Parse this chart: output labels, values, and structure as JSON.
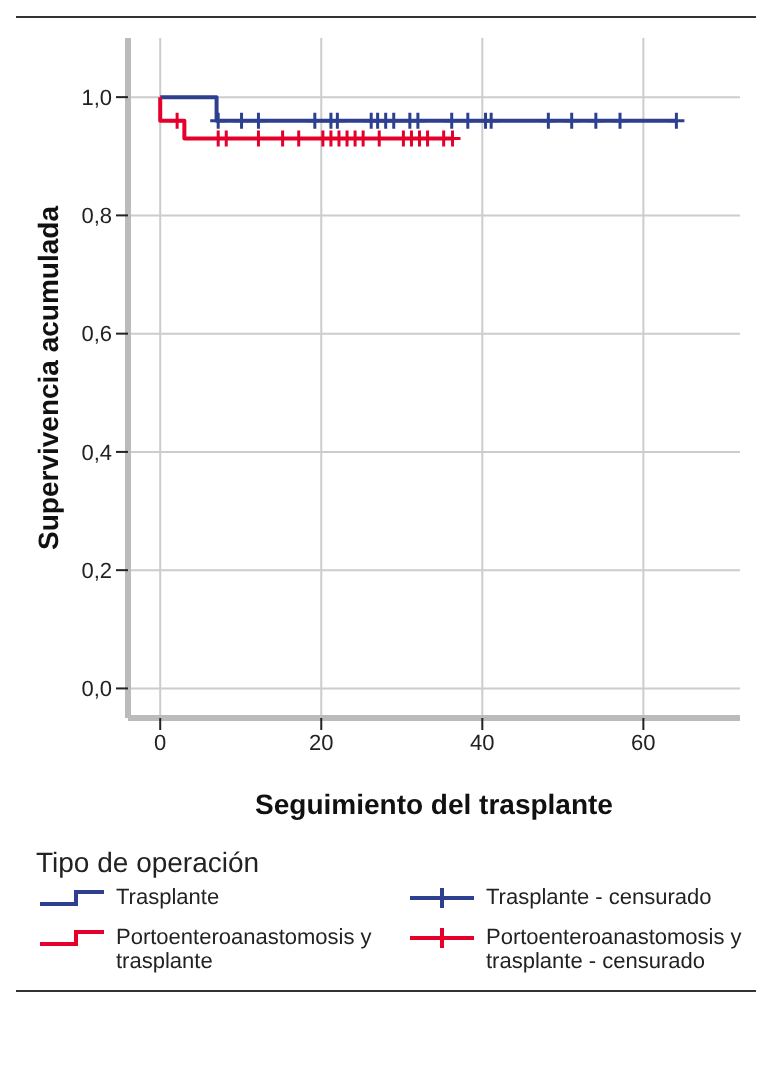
{
  "chart_data": {
    "type": "step",
    "xlabel": "Seguimiento del trasplante",
    "ylabel": "Supervivencia acumulada",
    "legend_title": "Tipo de operación",
    "xlim": [
      -4,
      72
    ],
    "xticks": [
      0,
      20,
      40,
      60
    ],
    "ylim": [
      -0.05,
      1.1
    ],
    "yticks": [
      {
        "value": 0,
        "label": "0,0"
      },
      {
        "value": 0.2,
        "label": "0,2"
      },
      {
        "value": 0.4,
        "label": "0,4"
      },
      {
        "value": 0.6,
        "label": "0,6"
      },
      {
        "value": 0.8,
        "label": "0,8"
      },
      {
        "value": 1,
        "label": "1,0"
      }
    ],
    "grid": true,
    "legend": "bottom",
    "line_style": "solid",
    "series": [
      {
        "name": "Trasplante",
        "color": "#2e3f8f",
        "marker": "none",
        "x": [
          0,
          7,
          64
        ],
        "values": [
          1,
          0.96,
          0.96
        ]
      },
      {
        "name": "Portoenteroanastomosis y trasplante",
        "color": "#e4002b",
        "marker": "none",
        "x": [
          0,
          0,
          3,
          36.3
        ],
        "values": [
          1,
          0.96,
          0.93,
          0.93
        ]
      },
      {
        "name": "Trasplante - censurado",
        "type": "scatter",
        "color": "#2e3f8f",
        "marker": "cross",
        "x": [
          7.2,
          10.1,
          12.2,
          19.2,
          21.2,
          22,
          26.2,
          27,
          28,
          29,
          31,
          32,
          36.2,
          38.2,
          40.4,
          41.1,
          48.2,
          51.1,
          54.1,
          57.1,
          64.1
        ],
        "values": [
          0.96,
          0.96,
          0.96,
          0.96,
          0.96,
          0.96,
          0.96,
          0.96,
          0.96,
          0.96,
          0.96,
          0.96,
          0.96,
          0.96,
          0.96,
          0.96,
          0.96,
          0.96,
          0.96,
          0.96,
          0.96
        ]
      },
      {
        "name": "Portoenteroanastomosis y trasplante - censurado",
        "type": "scatter",
        "color": "#e4002b",
        "marker": "cross",
        "x": [
          2.1,
          7.2,
          8.2,
          12.2,
          15.2,
          17.2,
          20.2,
          21.2,
          22.2,
          23.2,
          24.2,
          25.2,
          27.2,
          30.2,
          31.2,
          32.2,
          33.2,
          35.2,
          36.3
        ],
        "values": [
          0.96,
          0.93,
          0.93,
          0.93,
          0.93,
          0.93,
          0.93,
          0.93,
          0.93,
          0.93,
          0.93,
          0.93,
          0.93,
          0.93,
          0.93,
          0.93,
          0.93,
          0.93,
          0.93
        ]
      }
    ]
  }
}
